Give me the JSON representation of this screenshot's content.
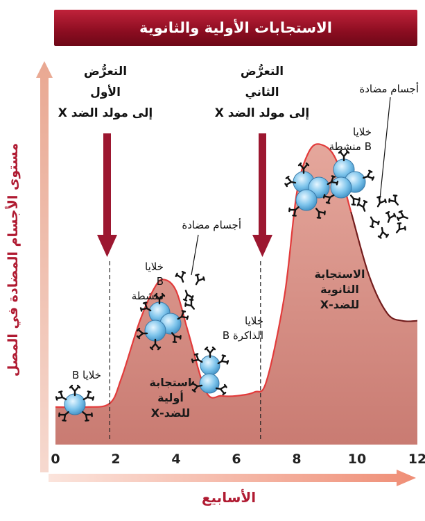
{
  "title": "الاستجابات الأولية والثانوية",
  "axes": {
    "y_label": "مستوى الأجسام المضادة في المصل",
    "x_label": "الأسابيع",
    "x_ticks": [
      "0",
      "2",
      "4",
      "6",
      "8",
      "10",
      "12"
    ]
  },
  "exposures": {
    "first": [
      "التعرُّض",
      "الأول",
      "إلى مولد الضد X"
    ],
    "second": [
      "التعرُّض",
      "الثاني",
      "إلى مولد الضد X"
    ]
  },
  "labels": {
    "b_cells": "خلايا B",
    "activated_b_1": [
      "خلايا",
      "B",
      "منشطة"
    ],
    "antibodies_1": "أجسام مضادة",
    "memory_b": [
      "خلايا",
      "الذاكرة B"
    ],
    "activated_b_2": [
      "خلايا",
      "B منشطة"
    ],
    "antibodies_2": "أجسام مضادة",
    "primary_response": [
      "استجابة",
      "أولية",
      "للضد-X"
    ],
    "secondary_response": [
      "الاستجابة",
      "الثانوية",
      "للضد-X"
    ]
  },
  "chart_data": {
    "type": "area",
    "x": [
      0,
      1,
      1.8,
      2.2,
      2.8,
      3.3,
      3.6,
      4.0,
      4.4,
      5.0,
      5.5,
      6.0,
      6.6,
      7.0,
      7.6,
      8.0,
      8.4,
      8.8,
      9.3,
      9.8,
      10.4,
      11.0,
      11.5,
      12
    ],
    "y": [
      0.1,
      0.1,
      0.11,
      0.18,
      0.33,
      0.42,
      0.44,
      0.41,
      0.3,
      0.14,
      0.13,
      0.13,
      0.14,
      0.17,
      0.4,
      0.67,
      0.78,
      0.8,
      0.76,
      0.62,
      0.45,
      0.35,
      0.33,
      0.33
    ],
    "xlim": [
      0,
      12
    ],
    "xlabel": "الأسابيع",
    "ylabel": "مستوى الأجسام المضادة في المصل",
    "events_x": [
      1.8,
      6.8
    ],
    "colors": {
      "fill": "#d48b82",
      "line": "#e23b3b",
      "accent": "#8c0d21"
    }
  }
}
